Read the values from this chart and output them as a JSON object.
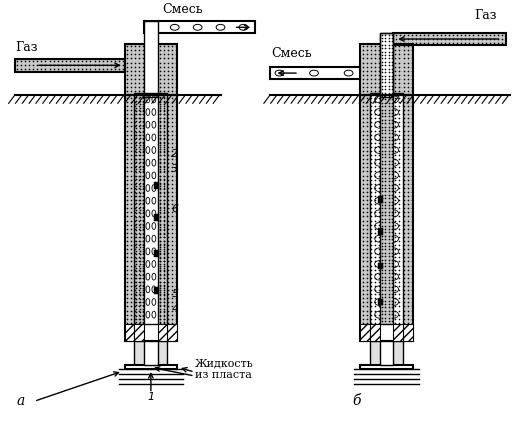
{
  "bg_color": "#ffffff",
  "line_color": "#000000",
  "fig_width": 5.18,
  "fig_height": 4.3,
  "label_a": "a",
  "label_b": "б",
  "label_gaz_a": "Газ",
  "label_gaz_b": "Газ",
  "label_smes_top": "Смесь",
  "label_smes_mid": "Смесь",
  "label_zhidkost1": "Жидкость",
  "label_zhidkost2": "из пласта"
}
